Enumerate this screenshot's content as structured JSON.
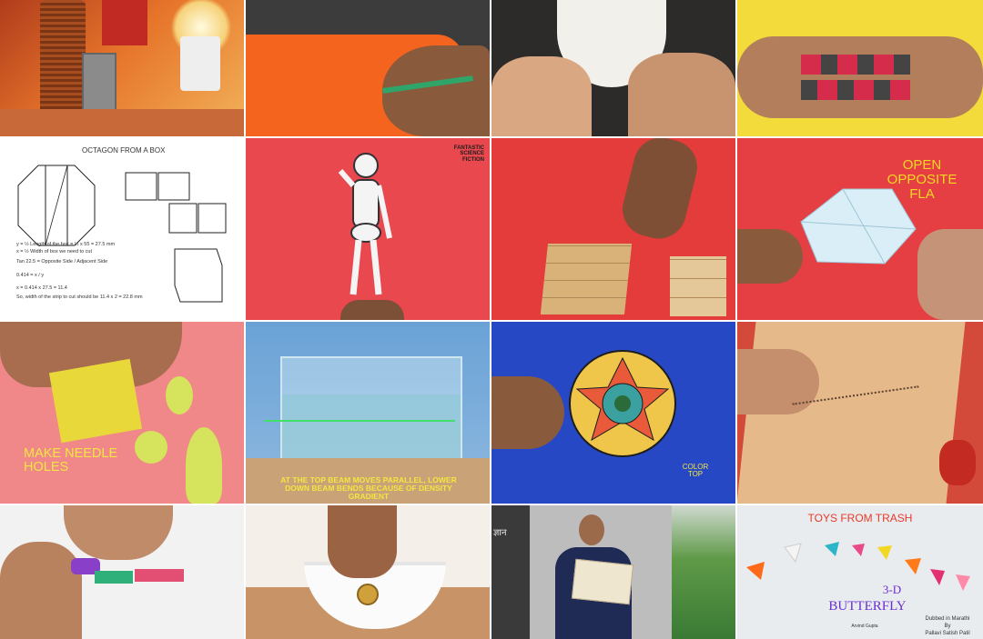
{
  "tiles": {
    "t5": {
      "title": "OCTAGON FROM A BOX",
      "lines": [
        "y = ½ Length of the box = ½ x 55 = 27.5 mm",
        "x = ½ Width of box we need to cut",
        "Tan 22.5 = Opposite Side / Adjacent Side",
        "0.414 = x / y",
        "x = 0.414 x 27.5 = 11.4",
        "So, width of the strip to cut should be 11.4 x 2 = 22.8 mm"
      ]
    },
    "t6": {
      "logo": "FANTASTIC SCIENCE FICTION"
    },
    "t8": {
      "caption": "OPEN OPPOSITE FLA"
    },
    "t9": {
      "caption": "MAKE NEEDLE HOLES"
    },
    "t10": {
      "caption": "AT THE TOP BEAM MOVES PARALLEL, LOWER DOWN BEAM BENDS BECAUSE OF DENSITY GRADIENT"
    },
    "t11": {
      "caption": "COLOR TOP"
    },
    "t15": {
      "sign": "ज्ञान"
    },
    "t16": {
      "title": "TOYS FROM TRASH",
      "subtitle_line1": "3-D",
      "subtitle_line2": "BUTTERFLY",
      "credit": "Arvind Gupta",
      "dubbed1": "Dubbed in Marathi",
      "dubbed2": "By",
      "dubbed3": "Pallavi Satish Patil"
    }
  },
  "colors": {
    "accent_yellow": "#f3d823",
    "title_red": "#e83a2a",
    "label_blue": "#6a2fd0"
  }
}
